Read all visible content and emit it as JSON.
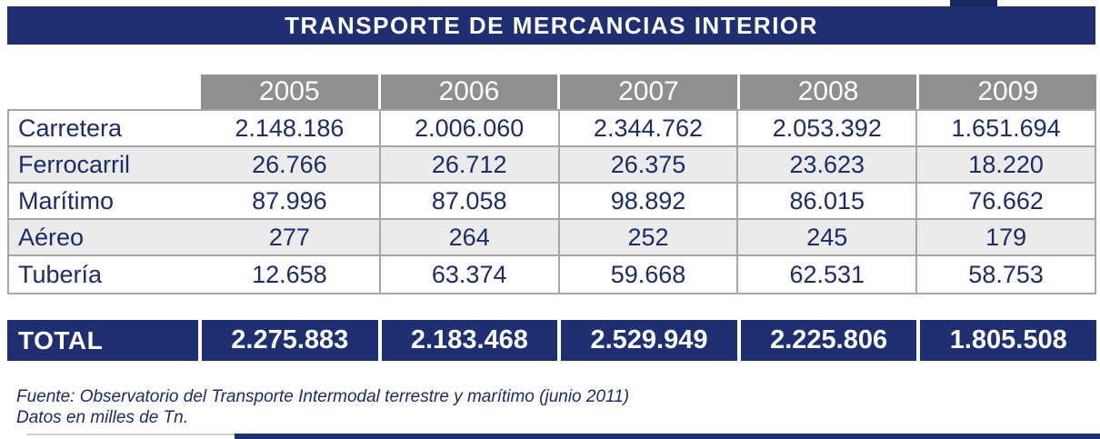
{
  "title": "TRANSPORTE DE MERCANCIAS INTERIOR",
  "table": {
    "years": [
      "2005",
      "2006",
      "2007",
      "2008",
      "2009"
    ],
    "rows": [
      {
        "label": "Carretera",
        "values": [
          "2.148.186",
          "2.006.060",
          "2.344.762",
          "2.053.392",
          "1.651.694"
        ]
      },
      {
        "label": "Ferrocarril",
        "values": [
          "26.766",
          "26.712",
          "26.375",
          "23.623",
          "18.220"
        ]
      },
      {
        "label": "Marítimo",
        "values": [
          "87.996",
          "87.058",
          "98.892",
          "86.015",
          "76.662"
        ]
      },
      {
        "label": "Aéreo",
        "values": [
          "277",
          "264",
          "252",
          "245",
          "179"
        ]
      },
      {
        "label": "Tubería",
        "values": [
          "12.658",
          "63.374",
          "59.668",
          "62.531",
          "58.753"
        ]
      }
    ],
    "total": {
      "label": "TOTAL",
      "values": [
        "2.275.883",
        "2.183.468",
        "2.529.949",
        "2.225.806",
        "1.805.508"
      ]
    }
  },
  "footer": {
    "source": "Fuente: Observatorio del Transporte Intermodal terrestre y marítimo (junio 2011)",
    "units": "Datos en milles de Tn."
  },
  "colors": {
    "navy": "#1e2f72",
    "header_gray": "#8f8f8f",
    "row_alt": "#ebebeb",
    "border_gray": "#a6a6a6",
    "text_navy": "#1b2b6b"
  },
  "chart_data": {
    "type": "table",
    "title": "TRANSPORTE DE MERCANCIAS INTERIOR",
    "columns": [
      "2005",
      "2006",
      "2007",
      "2008",
      "2009"
    ],
    "series": [
      {
        "name": "Carretera",
        "values": [
          2148186,
          2006060,
          2344762,
          2053392,
          1651694
        ]
      },
      {
        "name": "Ferrocarril",
        "values": [
          26766,
          26712,
          26375,
          23623,
          18220
        ]
      },
      {
        "name": "Marítimo",
        "values": [
          87996,
          87058,
          98892,
          86015,
          76662
        ]
      },
      {
        "name": "Aéreo",
        "values": [
          277,
          264,
          252,
          245,
          179
        ]
      },
      {
        "name": "Tubería",
        "values": [
          12658,
          63374,
          59668,
          62531,
          58753
        ]
      },
      {
        "name": "TOTAL",
        "values": [
          2275883,
          2183468,
          2529949,
          2225806,
          1805508
        ]
      }
    ],
    "units": "miles de Tn",
    "source": "Observatorio del Transporte Intermodal terrestre y marítimo (junio 2011)"
  }
}
